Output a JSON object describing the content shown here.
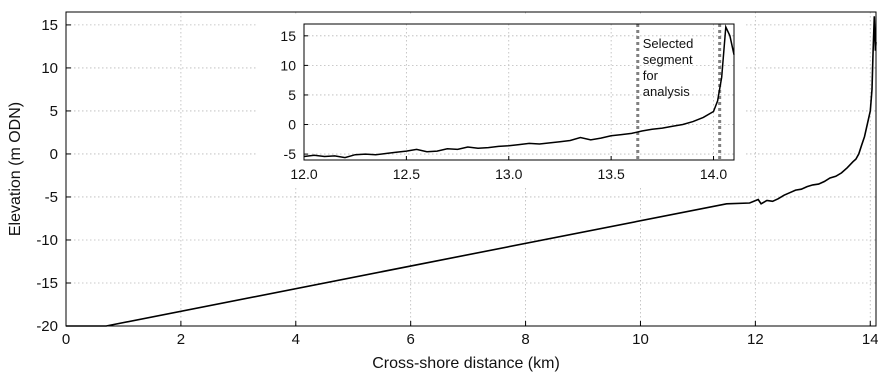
{
  "chart_data": [
    {
      "type": "line",
      "title": "",
      "xlabel": "Cross-shore distance (km)",
      "ylabel": "Elevation (m ODN)",
      "xlim": [
        0,
        14.1
      ],
      "ylim": [
        -20,
        16.5
      ],
      "xticks": [
        0,
        2,
        4,
        6,
        8,
        10,
        12,
        14
      ],
      "yticks": [
        -20,
        -15,
        -10,
        -5,
        0,
        5,
        10,
        15
      ],
      "grid": true,
      "series": [
        {
          "x": [
            0.0,
            0.7,
            11.5,
            11.9,
            12.05,
            12.1,
            12.2,
            12.3,
            12.4,
            12.5,
            12.6,
            12.7,
            12.8,
            12.9,
            13.0,
            13.1,
            13.2,
            13.3,
            13.4,
            13.5,
            13.6,
            13.7,
            13.75,
            13.8,
            13.85,
            13.9,
            13.95,
            14.0,
            14.03,
            14.05,
            14.07,
            14.09,
            14.1
          ],
          "y": [
            -20.0,
            -20.0,
            -5.8,
            -5.7,
            -5.3,
            -5.8,
            -5.4,
            -5.5,
            -5.2,
            -4.8,
            -4.5,
            -4.2,
            -4.1,
            -3.8,
            -3.6,
            -3.5,
            -3.2,
            -2.8,
            -2.6,
            -2.2,
            -1.6,
            -0.9,
            -0.6,
            0.0,
            1.0,
            2.0,
            3.5,
            5.0,
            7.5,
            12.0,
            16.0,
            12.0,
            13.0
          ]
        }
      ],
      "color": "#000000"
    },
    {
      "type": "line",
      "title": "",
      "xlim": [
        12.0,
        14.1
      ],
      "ylim": [
        -6,
        17
      ],
      "xticks": [
        12.0,
        12.5,
        13.0,
        13.5,
        14.0
      ],
      "xtick_labels": [
        "12.0",
        "12.5",
        "13.0",
        "13.5",
        "14.0"
      ],
      "yticks": [
        -5,
        0,
        5,
        10,
        15
      ],
      "grid": true,
      "series": [
        {
          "x": [
            12.0,
            12.05,
            12.1,
            12.15,
            12.2,
            12.25,
            12.3,
            12.35,
            12.4,
            12.45,
            12.5,
            12.55,
            12.6,
            12.65,
            12.7,
            12.75,
            12.8,
            12.85,
            12.9,
            12.95,
            13.0,
            13.05,
            13.1,
            13.15,
            13.2,
            13.25,
            13.3,
            13.35,
            13.4,
            13.45,
            13.5,
            13.55,
            13.6,
            13.65,
            13.7,
            13.75,
            13.8,
            13.85,
            13.9,
            13.95,
            14.0,
            14.02,
            14.04,
            14.06,
            14.08,
            14.1
          ],
          "y": [
            -5.4,
            -5.2,
            -5.4,
            -5.3,
            -5.6,
            -5.1,
            -5.0,
            -5.1,
            -4.9,
            -4.7,
            -4.5,
            -4.2,
            -4.6,
            -4.5,
            -4.1,
            -4.2,
            -3.8,
            -4.0,
            -3.9,
            -3.7,
            -3.6,
            -3.4,
            -3.2,
            -3.3,
            -3.1,
            -2.9,
            -2.7,
            -2.2,
            -2.6,
            -2.3,
            -1.9,
            -1.7,
            -1.5,
            -1.1,
            -0.8,
            -0.6,
            -0.3,
            0.0,
            0.5,
            1.2,
            2.2,
            4.0,
            8.0,
            16.5,
            15.0,
            11.8
          ]
        }
      ],
      "markers": [
        13.63,
        14.03
      ],
      "annotation": [
        "Selected",
        "segment",
        "for",
        "analysis"
      ]
    }
  ]
}
